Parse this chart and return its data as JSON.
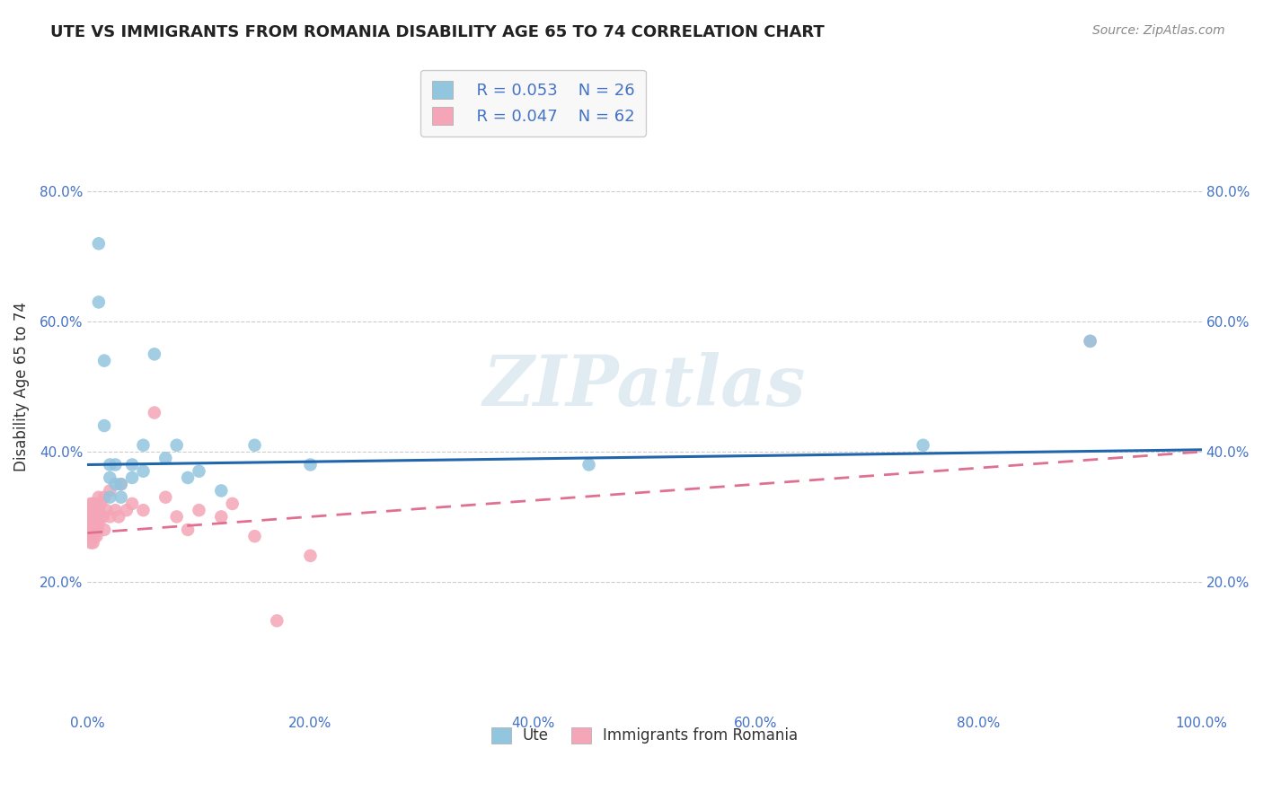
{
  "title": "UTE VS IMMIGRANTS FROM ROMANIA DISABILITY AGE 65 TO 74 CORRELATION CHART",
  "source": "Source: ZipAtlas.com",
  "xlabel": "",
  "ylabel": "Disability Age 65 to 74",
  "xlim": [
    0.0,
    1.0
  ],
  "ylim": [
    0.0,
    1.0
  ],
  "xtick_labels": [
    "0.0%",
    "20.0%",
    "40.0%",
    "60.0%",
    "80.0%",
    "100.0%"
  ],
  "xtick_vals": [
    0.0,
    0.2,
    0.4,
    0.6,
    0.8,
    1.0
  ],
  "ytick_labels": [
    "20.0%",
    "40.0%",
    "60.0%",
    "80.0%"
  ],
  "ytick_vals": [
    0.2,
    0.4,
    0.6,
    0.8
  ],
  "legend_labels": [
    "Ute",
    "Immigrants from Romania"
  ],
  "legend_r": [
    "R = 0.053",
    "R = 0.047"
  ],
  "legend_n": [
    "N = 26",
    "N = 62"
  ],
  "ute_color": "#92c5de",
  "romania_color": "#f4a6b8",
  "ute_line_color": "#2166ac",
  "romania_line_color": "#e07090",
  "background_color": "#ffffff",
  "watermark": "ZIPatlas",
  "ute_scatter_x": [
    0.01,
    0.01,
    0.015,
    0.015,
    0.02,
    0.02,
    0.02,
    0.025,
    0.025,
    0.03,
    0.03,
    0.04,
    0.04,
    0.05,
    0.05,
    0.06,
    0.07,
    0.08,
    0.09,
    0.1,
    0.12,
    0.15,
    0.2,
    0.45,
    0.75,
    0.9
  ],
  "ute_scatter_y": [
    0.72,
    0.63,
    0.44,
    0.54,
    0.38,
    0.36,
    0.33,
    0.38,
    0.35,
    0.35,
    0.33,
    0.38,
    0.36,
    0.41,
    0.37,
    0.55,
    0.39,
    0.41,
    0.36,
    0.37,
    0.34,
    0.41,
    0.38,
    0.38,
    0.41,
    0.57
  ],
  "romania_scatter_x": [
    0.002,
    0.002,
    0.002,
    0.002,
    0.003,
    0.003,
    0.003,
    0.003,
    0.003,
    0.003,
    0.003,
    0.004,
    0.004,
    0.004,
    0.004,
    0.004,
    0.005,
    0.005,
    0.005,
    0.005,
    0.005,
    0.005,
    0.005,
    0.005,
    0.006,
    0.006,
    0.006,
    0.007,
    0.007,
    0.008,
    0.008,
    0.008,
    0.009,
    0.009,
    0.01,
    0.01,
    0.01,
    0.012,
    0.012,
    0.014,
    0.015,
    0.015,
    0.017,
    0.02,
    0.02,
    0.025,
    0.028,
    0.03,
    0.035,
    0.04,
    0.05,
    0.06,
    0.07,
    0.08,
    0.09,
    0.1,
    0.12,
    0.13,
    0.15,
    0.17,
    0.2,
    0.9
  ],
  "romania_scatter_y": [
    0.27,
    0.28,
    0.29,
    0.3,
    0.26,
    0.27,
    0.28,
    0.29,
    0.3,
    0.31,
    0.32,
    0.27,
    0.28,
    0.29,
    0.3,
    0.31,
    0.26,
    0.27,
    0.27,
    0.28,
    0.29,
    0.3,
    0.31,
    0.32,
    0.27,
    0.29,
    0.31,
    0.28,
    0.3,
    0.27,
    0.29,
    0.31,
    0.28,
    0.32,
    0.29,
    0.31,
    0.33,
    0.3,
    0.32,
    0.3,
    0.28,
    0.33,
    0.31,
    0.3,
    0.34,
    0.31,
    0.3,
    0.35,
    0.31,
    0.32,
    0.31,
    0.46,
    0.33,
    0.3,
    0.28,
    0.31,
    0.3,
    0.32,
    0.27,
    0.14,
    0.24,
    0.57
  ],
  "ute_line_x0": 0.0,
  "ute_line_x1": 1.0,
  "ute_line_y0": 0.38,
  "ute_line_y1": 0.403,
  "rom_line_x0": 0.0,
  "rom_line_x1": 1.0,
  "rom_line_y0": 0.275,
  "rom_line_y1": 0.4
}
